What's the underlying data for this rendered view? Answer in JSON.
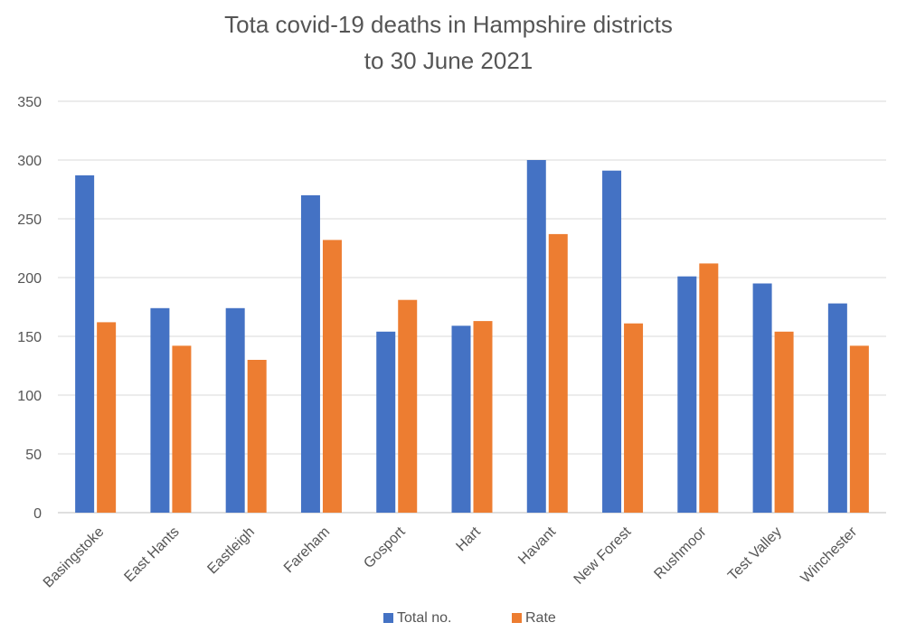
{
  "chart_data": {
    "type": "bar",
    "title": "Tota covid-19 deaths in Hampshire districts",
    "subtitle": "to 30 June 2021",
    "categories": [
      "Basingstoke",
      "East Hants",
      "Eastleigh",
      "Fareham",
      "Gosport",
      "Hart",
      "Havant",
      "New Forest",
      "Rushmoor",
      "Test Valley",
      "Winchester"
    ],
    "series": [
      {
        "name": "Total no.",
        "color": "#4472C4",
        "values": [
          287,
          174,
          174,
          270,
          154,
          159,
          300,
          291,
          201,
          195,
          178
        ]
      },
      {
        "name": "Rate",
        "color": "#ED7D31",
        "values": [
          162,
          142,
          130,
          232,
          181,
          163,
          237,
          161,
          212,
          154,
          142
        ]
      }
    ],
    "ylim": [
      0,
      350
    ],
    "yticks": [
      0,
      50,
      100,
      150,
      200,
      250,
      300,
      350
    ],
    "grid": true,
    "legend": "bottom-center",
    "xlabel": "",
    "ylabel": ""
  }
}
